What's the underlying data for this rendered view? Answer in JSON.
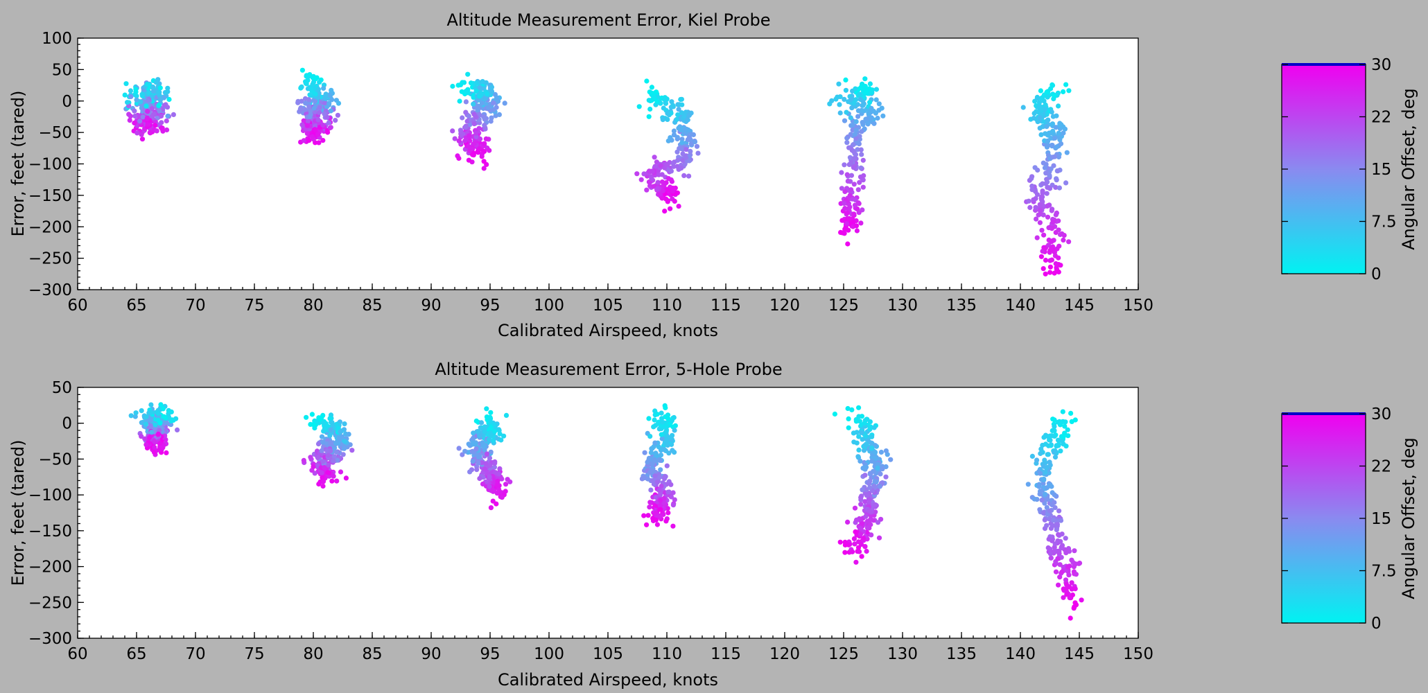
{
  "figure_title": "",
  "colorbar_scale": [
    "#00f2f2",
    "#8a8af0",
    "#f000f0"
  ],
  "chart_data": [
    {
      "type": "scatter",
      "title": "Altitude Measurement Error, Kiel Probe",
      "xlabel": "Calibrated Airspeed, knots",
      "ylabel": "Error, feet (tared)",
      "xlim": [
        60,
        150
      ],
      "ylim": [
        -300,
        100
      ],
      "xticks": [
        60,
        65,
        70,
        75,
        80,
        85,
        90,
        95,
        100,
        105,
        110,
        115,
        120,
        125,
        130,
        135,
        140,
        145,
        150
      ],
      "yticks": [
        100,
        50,
        0,
        -50,
        -100,
        -150,
        -200,
        -250,
        -300
      ],
      "colorbar": {
        "label": "Angular Offset, deg",
        "range": [
          0,
          30
        ],
        "ticks": [
          "30",
          "22",
          "15",
          "7.5",
          "0"
        ],
        "tick_values": [
          30,
          22.5,
          15,
          7.5,
          0
        ]
      },
      "clusters": [
        {
          "x_center": 66,
          "offsets": [
            0,
            3,
            6,
            9,
            12,
            15,
            18,
            21,
            24,
            27,
            30
          ],
          "y": [
            8,
            12,
            18,
            6,
            -2,
            -12,
            -18,
            -25,
            -32,
            -38,
            -42
          ],
          "x_shift": [
            0.4,
            -1.2,
            0.2,
            1.0,
            -0.6,
            0.2,
            0.8,
            0.1,
            -0.5,
            0.3,
            0.0
          ],
          "x_spread": 1.5,
          "y_spread": 10
        },
        {
          "x_center": 80,
          "offsets": [
            0,
            3,
            6,
            9,
            12,
            15,
            18,
            21,
            24,
            27,
            30
          ],
          "y": [
            38,
            22,
            10,
            0,
            -8,
            -14,
            -20,
            -30,
            -38,
            -44,
            -50
          ],
          "x_shift": [
            0.0,
            -0.3,
            0.6,
            1.2,
            0.2,
            -0.7,
            0.8,
            -0.4,
            0.6,
            -0.2,
            0.2
          ],
          "x_spread": 1.2,
          "y_spread": 10
        },
        {
          "x_center": 93,
          "offsets": [
            0,
            3,
            6,
            9,
            12,
            15,
            18,
            21,
            24,
            27,
            30
          ],
          "y": [
            20,
            18,
            14,
            5,
            -10,
            -22,
            -35,
            -50,
            -60,
            -72,
            -85
          ],
          "x_shift": [
            -0.5,
            0.8,
            1.6,
            1.4,
            2.0,
            1.2,
            0.4,
            0.2,
            0.6,
            0.8,
            0.5
          ],
          "x_spread": 1.3,
          "y_spread": 10
        },
        {
          "x_center": 110,
          "offsets": [
            0,
            3,
            6,
            9,
            12,
            15,
            18,
            21,
            24,
            27,
            30
          ],
          "y": [
            15,
            0,
            -20,
            -40,
            -60,
            -80,
            -100,
            -110,
            -125,
            -140,
            -155
          ],
          "x_shift": [
            -1.2,
            -0.6,
            0.8,
            1.2,
            1.6,
            1.8,
            1.2,
            -0.8,
            -1.4,
            0.0,
            0.4
          ],
          "x_spread": 1.1,
          "y_spread": 10
        },
        {
          "x_center": 126,
          "offsets": [
            0,
            3,
            6,
            9,
            12,
            15,
            18,
            21,
            24,
            27,
            30
          ],
          "y": [
            18,
            10,
            0,
            -15,
            -45,
            -70,
            -100,
            -130,
            -160,
            -185,
            -205
          ],
          "x_shift": [
            0.4,
            1.2,
            -1.4,
            1.4,
            0.6,
            -0.2,
            0.0,
            -0.2,
            -0.4,
            -0.6,
            -0.6
          ],
          "x_spread": 1.1,
          "y_spread": 10
        },
        {
          "x_center": 142,
          "offsets": [
            0,
            3,
            6,
            9,
            12,
            15,
            18,
            21,
            24,
            27,
            30
          ],
          "y": [
            20,
            5,
            -20,
            -50,
            -80,
            -110,
            -140,
            -170,
            -200,
            -235,
            -265
          ],
          "x_shift": [
            1.0,
            0.4,
            -0.6,
            1.2,
            0.8,
            0.6,
            -0.4,
            -0.2,
            0.8,
            0.8,
            0.4
          ],
          "x_spread": 1.2,
          "y_spread": 10
        }
      ]
    },
    {
      "type": "scatter",
      "title": "Altitude Measurement Error, 5-Hole Probe",
      "xlabel": "Calibrated Airspeed, knots",
      "ylabel": "Error, feet (tared)",
      "xlim": [
        60,
        150
      ],
      "ylim": [
        -300,
        50
      ],
      "xticks": [
        60,
        65,
        70,
        75,
        80,
        85,
        90,
        95,
        100,
        105,
        110,
        115,
        120,
        125,
        130,
        135,
        140,
        145,
        150
      ],
      "yticks": [
        50,
        0,
        -50,
        -100,
        -150,
        -200,
        -250,
        -300
      ],
      "colorbar": {
        "label": "Angular Offset, deg",
        "range": [
          0,
          30
        ],
        "ticks": [
          "30",
          "22",
          "15",
          "7.5",
          "0"
        ],
        "tick_values": [
          30,
          22.5,
          15,
          7.5,
          0
        ]
      },
      "clusters": [
        {
          "x_center": 66.5,
          "offsets": [
            0,
            3,
            6,
            9,
            12,
            15,
            18,
            21,
            24,
            27,
            30
          ],
          "y": [
            5,
            10,
            8,
            2,
            -2,
            -8,
            -12,
            -18,
            -22,
            -26,
            -30
          ],
          "x_shift": [
            0.6,
            1.0,
            -0.6,
            -0.2,
            0.4,
            0.0,
            0.2,
            -0.4,
            0.4,
            0.0,
            0.2
          ],
          "x_spread": 1.1,
          "y_spread": 7
        },
        {
          "x_center": 81,
          "offsets": [
            0,
            3,
            6,
            9,
            12,
            15,
            18,
            21,
            24,
            27,
            30
          ],
          "y": [
            0,
            -5,
            -10,
            -18,
            -28,
            -38,
            -45,
            -52,
            -60,
            -68,
            -75
          ],
          "x_shift": [
            -0.6,
            0.2,
            0.8,
            1.2,
            0.8,
            0.2,
            0.4,
            0.0,
            -0.2,
            0.0,
            0.0
          ],
          "x_spread": 1.2,
          "y_spread": 8
        },
        {
          "x_center": 94.5,
          "offsets": [
            0,
            3,
            6,
            9,
            12,
            15,
            18,
            21,
            24,
            27,
            30
          ],
          "y": [
            5,
            -5,
            -15,
            -25,
            -35,
            -45,
            -55,
            -65,
            -78,
            -90,
            -105
          ],
          "x_shift": [
            0.0,
            1.0,
            0.6,
            -0.4,
            -0.6,
            -0.8,
            0.0,
            0.4,
            0.8,
            1.0,
            0.8
          ],
          "x_spread": 1.1,
          "y_spread": 9
        },
        {
          "x_center": 109.5,
          "offsets": [
            0,
            3,
            6,
            9,
            12,
            15,
            18,
            21,
            24,
            27,
            30
          ],
          "y": [
            10,
            -5,
            -20,
            -40,
            -55,
            -70,
            -85,
            -100,
            -110,
            -120,
            -130
          ],
          "x_shift": [
            0.6,
            0.0,
            0.8,
            -0.4,
            -0.8,
            -1.0,
            0.2,
            0.2,
            0.0,
            -0.2,
            -0.2
          ],
          "x_spread": 1.0,
          "y_spread": 9
        },
        {
          "x_center": 126.5,
          "offsets": [
            0,
            3,
            6,
            9,
            12,
            15,
            18,
            21,
            24,
            27,
            30
          ],
          "y": [
            10,
            0,
            -25,
            -45,
            -65,
            -85,
            -100,
            -120,
            -140,
            -160,
            -175
          ],
          "x_shift": [
            -1.0,
            0.4,
            0.2,
            0.8,
            1.2,
            1.0,
            0.8,
            0.6,
            0.2,
            -0.2,
            -0.6
          ],
          "x_spread": 1.1,
          "y_spread": 10
        },
        {
          "x_center": 143,
          "offsets": [
            0,
            3,
            6,
            9,
            12,
            15,
            18,
            21,
            24,
            27,
            30
          ],
          "y": [
            0,
            -15,
            -40,
            -70,
            -95,
            -120,
            -150,
            -175,
            -200,
            -225,
            -250
          ],
          "x_shift": [
            1.0,
            0.2,
            -0.8,
            -1.2,
            -1.0,
            -0.6,
            0.0,
            0.4,
            0.8,
            1.2,
            1.6
          ],
          "x_spread": 1.1,
          "y_spread": 9
        }
      ]
    }
  ]
}
